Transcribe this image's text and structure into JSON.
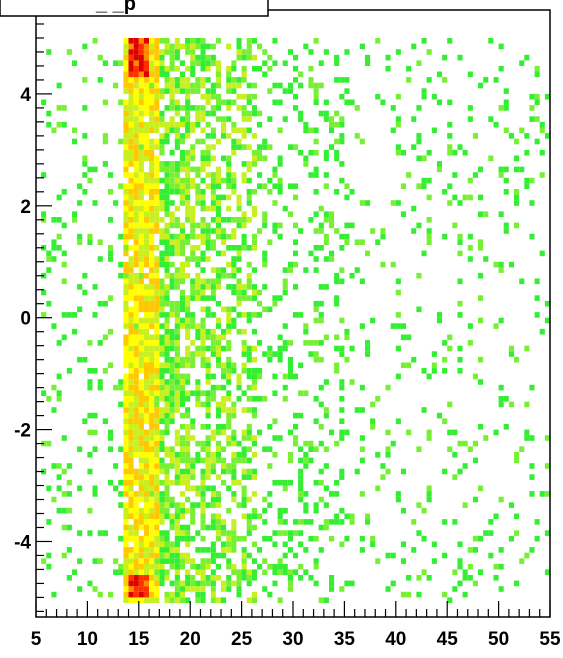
{
  "chart_data": {
    "type": "heatmap",
    "title": "_ _p",
    "xlabel": "",
    "ylabel": "",
    "xlim": [
      5,
      55
    ],
    "ylim": [
      -5.35,
      5.5
    ],
    "x_ticks": [
      5,
      10,
      15,
      20,
      25,
      30,
      35,
      40,
      45,
      50,
      55
    ],
    "x_tick_labels": [
      "5",
      "10",
      "15",
      "20",
      "25",
      "30",
      "35",
      "40",
      "45",
      "50",
      "55"
    ],
    "y_ticks": [
      4,
      2,
      0,
      -2,
      -4
    ],
    "y_tick_labels": [
      "4",
      "2",
      "0",
      "-2",
      "-4"
    ],
    "bin_width_x": 0.5,
    "bin_height_y": 0.1,
    "color_scale": [
      "#33ee33",
      "#77f033",
      "#c8f020",
      "#ffff00",
      "#ffc800",
      "#ff8c00",
      "#ff3000",
      "#dd0000"
    ],
    "grid": false,
    "bands": [
      {
        "x_start": 13.5,
        "x_end": 17.0,
        "y_range": [
          -5.1,
          5.0
        ],
        "density": 0.95,
        "level": 3
      },
      {
        "x_start": 14.0,
        "x_end": 16.0,
        "y_range": [
          4.3,
          4.95
        ],
        "density": 0.95,
        "level": 6
      },
      {
        "x_start": 14.0,
        "x_end": 16.0,
        "y_range": [
          -5.0,
          -4.6
        ],
        "density": 0.95,
        "level": 6
      },
      {
        "x_start": 17.0,
        "x_end": 20.0,
        "y_range": [
          -5.1,
          5.0
        ],
        "density": 0.75,
        "level": 1
      },
      {
        "x_start": 20.0,
        "x_end": 23.0,
        "y_range": [
          -5.1,
          5.0
        ],
        "density": 0.6,
        "level": 1
      },
      {
        "x_start": 23.0,
        "x_end": 26.5,
        "y_range": [
          -5.1,
          5.0
        ],
        "density": 0.45,
        "level": 1
      },
      {
        "x_start": 26.5,
        "x_end": 35.0,
        "y_range": [
          -5.1,
          5.0
        ],
        "density": 0.22,
        "level": 0
      },
      {
        "x_start": 35.0,
        "x_end": 55.0,
        "y_range": [
          -5.1,
          5.0
        ],
        "density": 0.1,
        "level": 0
      },
      {
        "x_start": 5.5,
        "x_end": 13.5,
        "y_range": [
          -5.1,
          5.0
        ],
        "density": 0.12,
        "level": 0
      }
    ]
  }
}
